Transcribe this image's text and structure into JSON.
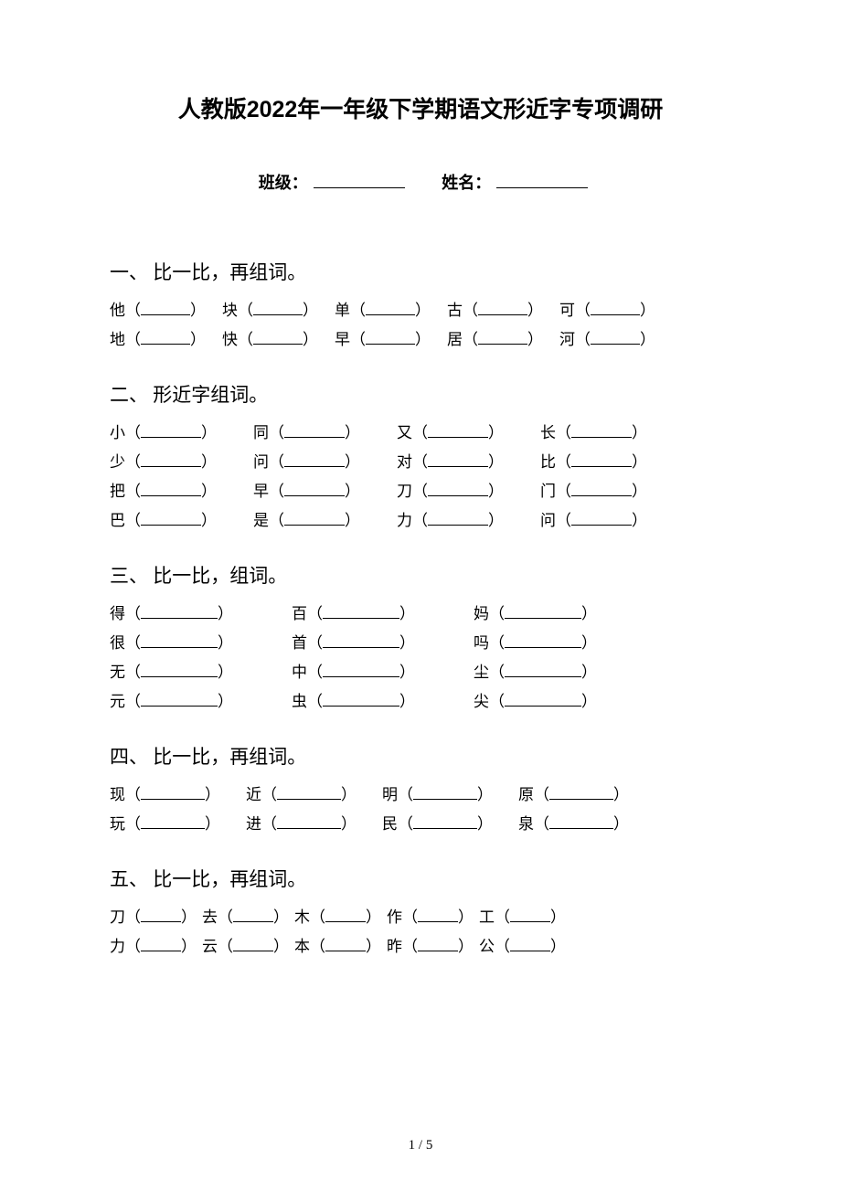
{
  "title": "人教版2022年一年级下学期语文形近字专项调研",
  "meta": {
    "class_label": "班级：",
    "name_label": "姓名："
  },
  "sections": [
    {
      "heading": "一、 比一比，再组词。",
      "pairs_layout": "5col",
      "blank_width": 54,
      "col_gap": 18,
      "rows": [
        [
          "他",
          "块",
          "单",
          "古",
          "可"
        ],
        [
          "地",
          "快",
          "早",
          "居",
          "河"
        ]
      ]
    },
    {
      "heading": "二、 形近字组词。",
      "pairs_layout": "4col",
      "blank_width": 66,
      "col_gap": 40,
      "rows": [
        [
          "小",
          "同",
          "又",
          "长"
        ],
        [
          "少",
          "问",
          "对",
          "比"
        ],
        [
          "把",
          "早",
          "刀",
          "门"
        ],
        [
          "巴",
          "是",
          "力",
          "问"
        ]
      ]
    },
    {
      "heading": "三、 比一比，组词。",
      "pairs_layout": "3col",
      "blank_width": 84,
      "col_gap": 64,
      "rows": [
        [
          "得",
          "百",
          "妈"
        ],
        [
          "很",
          "首",
          "吗"
        ],
        [
          "无",
          "中",
          "尘"
        ],
        [
          "元",
          "虫",
          "尖"
        ]
      ]
    },
    {
      "heading": "四、 比一比，再组词。",
      "pairs_layout": "4col",
      "blank_width": 70,
      "col_gap": 28,
      "rows": [
        [
          "现",
          "近",
          "明",
          "原"
        ],
        [
          "玩",
          "进",
          "民",
          "泉"
        ]
      ]
    },
    {
      "heading": "五、 比一比，再组词。",
      "pairs_layout": "5col_tight",
      "blank_width": 44,
      "col_gap": 6,
      "rows": [
        [
          "刀",
          "去",
          "木",
          "作",
          "工"
        ],
        [
          "力",
          "云",
          "本",
          "昨",
          "公"
        ]
      ]
    }
  ],
  "page_number": "1 / 5",
  "colors": {
    "text": "#000000",
    "background": "#ffffff"
  }
}
